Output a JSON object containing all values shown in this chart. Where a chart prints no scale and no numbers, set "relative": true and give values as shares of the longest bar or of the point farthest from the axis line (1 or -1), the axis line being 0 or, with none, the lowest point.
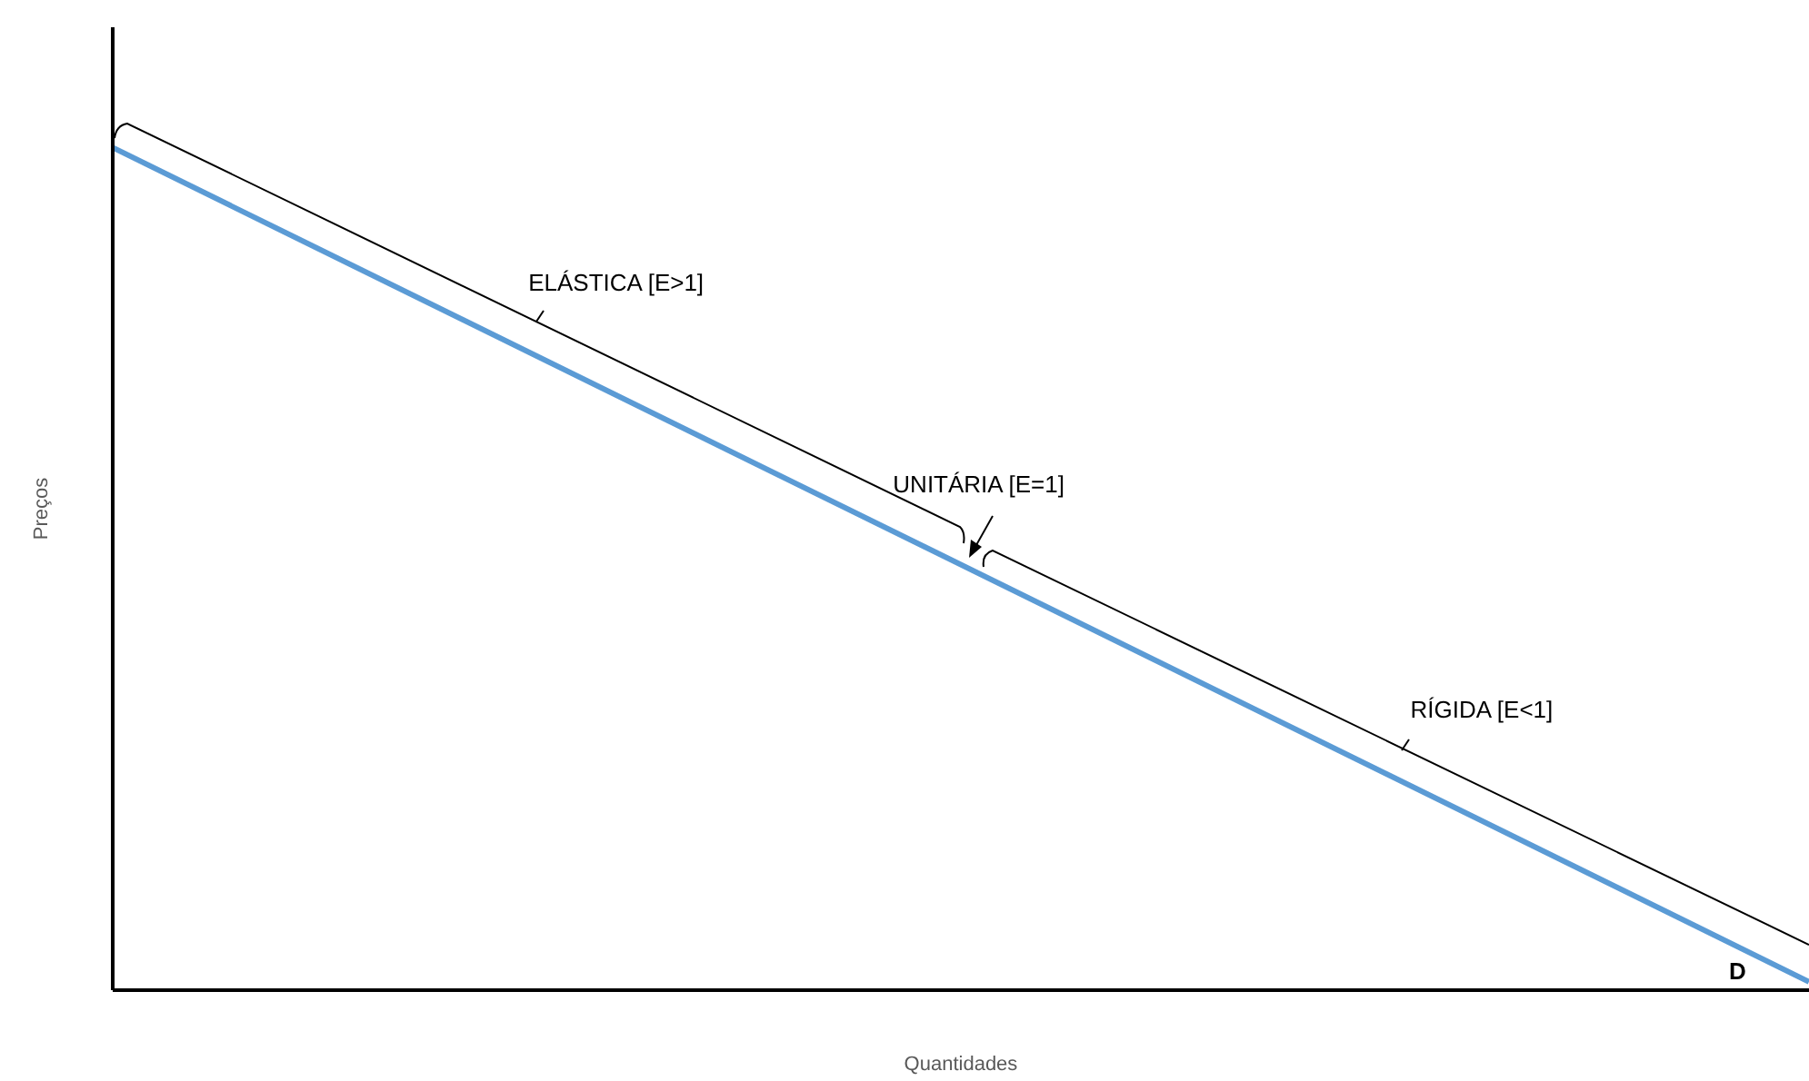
{
  "chart_data": {
    "type": "line",
    "relative": true,
    "xlabel": "Quantidades",
    "ylabel": "Preços",
    "categories": [
      null,
      null
    ],
    "series": [
      {
        "name": "D",
        "color": "#5b9bd5",
        "values": [
          1,
          0.01
        ]
      }
    ],
    "annotations": [
      "ELÁSTICA [E>1]",
      "UNITÁRIA [E=1]",
      "RÍGIDA [E<1]"
    ],
    "marker": "none",
    "line_style": "solid",
    "legend": false
  }
}
